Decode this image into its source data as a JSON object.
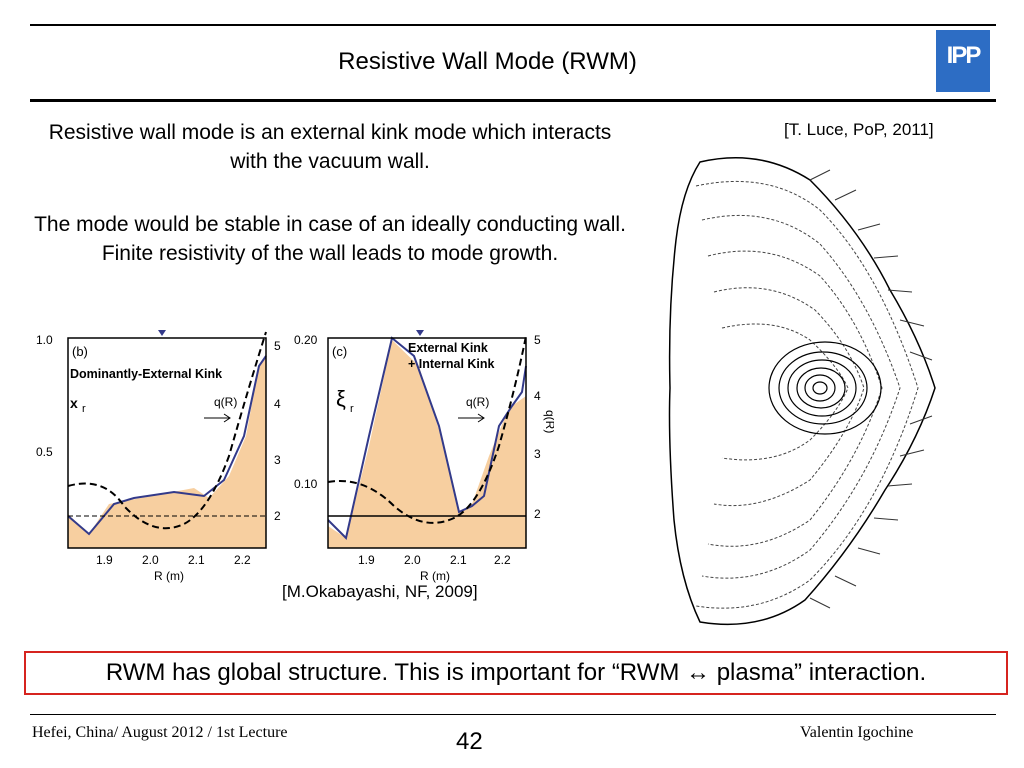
{
  "slide": {
    "title": "Resistive Wall Mode (RWM)",
    "logo_text": "IPP",
    "paragraph1": "Resistive wall mode is an external kink mode which interacts with the vacuum wall.",
    "paragraph2": "The mode would be stable in case of an ideally conducting wall. Finite resistivity of the wall leads to mode growth.",
    "citation_right": "[T. Luce, PoP, 2011]",
    "citation_left": "[M.Okabayashi, NF, 2009]",
    "conclusion": "RWM has global structure. This is important for “RWM ↔ plasma” interaction.",
    "footer_left": "Hefei, China/ August 2012 / 1st Lecture",
    "page_number": "42",
    "footer_right": "Valentin Igochine"
  },
  "colors": {
    "accent_red": "#d6241f",
    "logo_blue": "#2d6dc4",
    "fill_orange": "#f7cfa0",
    "line_blue": "#333a8a"
  },
  "plot_b": {
    "panel": "(b)",
    "label": "Dominantly-External Kink",
    "xi_label": "x",
    "xi_sub": "r",
    "q_label": "q(R)",
    "y_ticks": [
      "1.0",
      "0.5"
    ],
    "x_ticks": [
      "1.9",
      "2.0",
      "2.1",
      "2.2"
    ],
    "right_ticks": [
      "5",
      "4",
      "3",
      "2"
    ],
    "xlabel": "R (m)"
  },
  "plot_c": {
    "panel": "(c)",
    "label_line1": "External Kink",
    "label_line2": "+ Internal Kink",
    "xi_label": "ξ",
    "xi_sub": "r",
    "q_label": "q(R)",
    "y_ticks": [
      "0.20",
      "0.10"
    ],
    "x_ticks": [
      "1.9",
      "2.0",
      "2.1",
      "2.2"
    ],
    "right_ticks": [
      "5",
      "4",
      "3",
      "2"
    ],
    "right_axis_label": "q(R)",
    "xlabel": "R (m)"
  }
}
